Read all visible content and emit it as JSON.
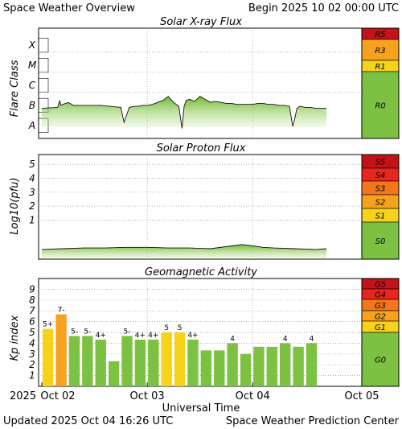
{
  "header": {
    "title": "Space Weather Overview",
    "begin": "Begin 2025 10 02 00:00 UTC",
    "updated": "Updated 2025 Oct 04 16:26 UTC",
    "center": "Space Weather Prediction Center"
  },
  "colors": {
    "green": "#7dc142",
    "yellow": "#f6d21a",
    "orange": "#f6a21d",
    "red_orange": "#f4761c",
    "red": "#e8261e",
    "dark_red": "#c4121a"
  },
  "chart_data": [
    {
      "type": "area",
      "title": "Solar X-ray Flux",
      "ylabel": "Flare Class",
      "yticks": [
        "A",
        "B",
        "C",
        "M",
        "X"
      ],
      "scale": [
        {
          "label": "R5",
          "color": "#c4121a"
        },
        {
          "label": "R3",
          "color": "#f6a21d"
        },
        {
          "label": "R1",
          "color": "#f6d21a"
        },
        {
          "label": "R0",
          "color": "#7dc142"
        }
      ],
      "x": [
        0.0,
        0.15,
        0.17,
        0.18,
        0.2,
        0.25,
        0.3,
        0.45,
        0.55,
        0.65,
        0.75,
        0.78,
        0.83,
        0.88,
        0.92,
        0.95,
        1.0,
        1.05,
        1.1,
        1.15,
        1.2,
        1.25,
        1.3,
        1.33,
        1.35,
        1.37,
        1.4,
        1.45,
        1.5,
        1.55,
        1.6,
        1.65,
        1.7,
        1.75,
        1.8,
        1.85,
        1.9,
        1.95,
        2.0,
        2.05,
        2.1,
        2.15,
        2.2,
        2.25,
        2.3,
        2.35,
        2.38,
        2.4,
        2.42,
        2.45,
        2.5,
        2.55,
        2.6,
        2.65,
        2.7
      ],
      "values": [
        1.5,
        1.55,
        1.9,
        1.65,
        1.7,
        1.8,
        1.65,
        1.65,
        1.65,
        1.6,
        1.55,
        0.8,
        1.55,
        1.6,
        1.6,
        1.65,
        1.65,
        1.7,
        1.8,
        1.9,
        2.1,
        1.8,
        1.6,
        0.5,
        1.6,
        1.9,
        1.95,
        1.85,
        2.1,
        1.95,
        1.8,
        1.85,
        1.8,
        1.75,
        1.75,
        1.7,
        1.7,
        1.7,
        1.7,
        1.75,
        1.75,
        1.7,
        1.7,
        1.65,
        1.65,
        1.6,
        0.6,
        1.0,
        1.5,
        1.6,
        1.55,
        1.55,
        1.5,
        1.5,
        1.5
      ],
      "ylim": [
        0,
        5.5
      ]
    },
    {
      "type": "area",
      "title": "Solar Proton Flux",
      "ylabel": "Log10(pfu)",
      "yticks": [
        "1",
        "2",
        "3",
        "4",
        "5"
      ],
      "scale": [
        {
          "label": "S5",
          "color": "#c4121a"
        },
        {
          "label": "S4",
          "color": "#e8261e"
        },
        {
          "label": "S3",
          "color": "#f4761c"
        },
        {
          "label": "S2",
          "color": "#f6a21d"
        },
        {
          "label": "S1",
          "color": "#f6d21a"
        },
        {
          "label": "S0",
          "color": "#7dc142"
        }
      ],
      "x": [
        0.0,
        0.2,
        0.4,
        0.6,
        0.8,
        1.0,
        1.2,
        1.4,
        1.6,
        1.8,
        1.9,
        2.0,
        2.1,
        2.2,
        2.4,
        2.6,
        2.7
      ],
      "values": [
        -1.1,
        -1.05,
        -1.0,
        -1.0,
        -0.95,
        -0.95,
        -1.0,
        -1.0,
        -1.05,
        -0.85,
        -0.75,
        -0.85,
        -0.95,
        -1.0,
        -1.05,
        -1.1,
        -1.05
      ],
      "ylim": [
        -1.8,
        5.7
      ]
    },
    {
      "type": "bar",
      "title": "Geomagnetic Activity",
      "ylabel": "Kp index",
      "yticks": [
        "1",
        "2",
        "3",
        "4",
        "5",
        "6",
        "7",
        "8",
        "9"
      ],
      "xlabel": "Universal Time",
      "x_date_label": "2025",
      "xticks": [
        "Oct 02",
        "Oct 03",
        "Oct 04",
        "Oct 05"
      ],
      "scale": [
        {
          "label": "G5",
          "color": "#c4121a"
        },
        {
          "label": "G4",
          "color": "#e8261e"
        },
        {
          "label": "G3",
          "color": "#f4761c"
        },
        {
          "label": "G2",
          "color": "#f6a21d"
        },
        {
          "label": "G1",
          "color": "#f6d21a"
        },
        {
          "label": "G0",
          "color": "#7dc142"
        }
      ],
      "values": [
        5.33,
        6.67,
        4.67,
        4.67,
        4.33,
        2.33,
        4.67,
        4.33,
        4.33,
        5.0,
        5.0,
        4.33,
        3.33,
        3.33,
        4.0,
        3.0,
        3.67,
        3.67,
        4.0,
        3.67,
        4.0
      ],
      "labels": [
        "5+",
        "7-",
        "5-",
        "5-",
        "4+",
        "",
        "5-",
        "4+",
        "4+",
        "5",
        "5",
        "4+",
        "",
        "",
        "4",
        "",
        "",
        "",
        "4",
        "",
        "4"
      ],
      "ylim": [
        0,
        10
      ]
    }
  ]
}
